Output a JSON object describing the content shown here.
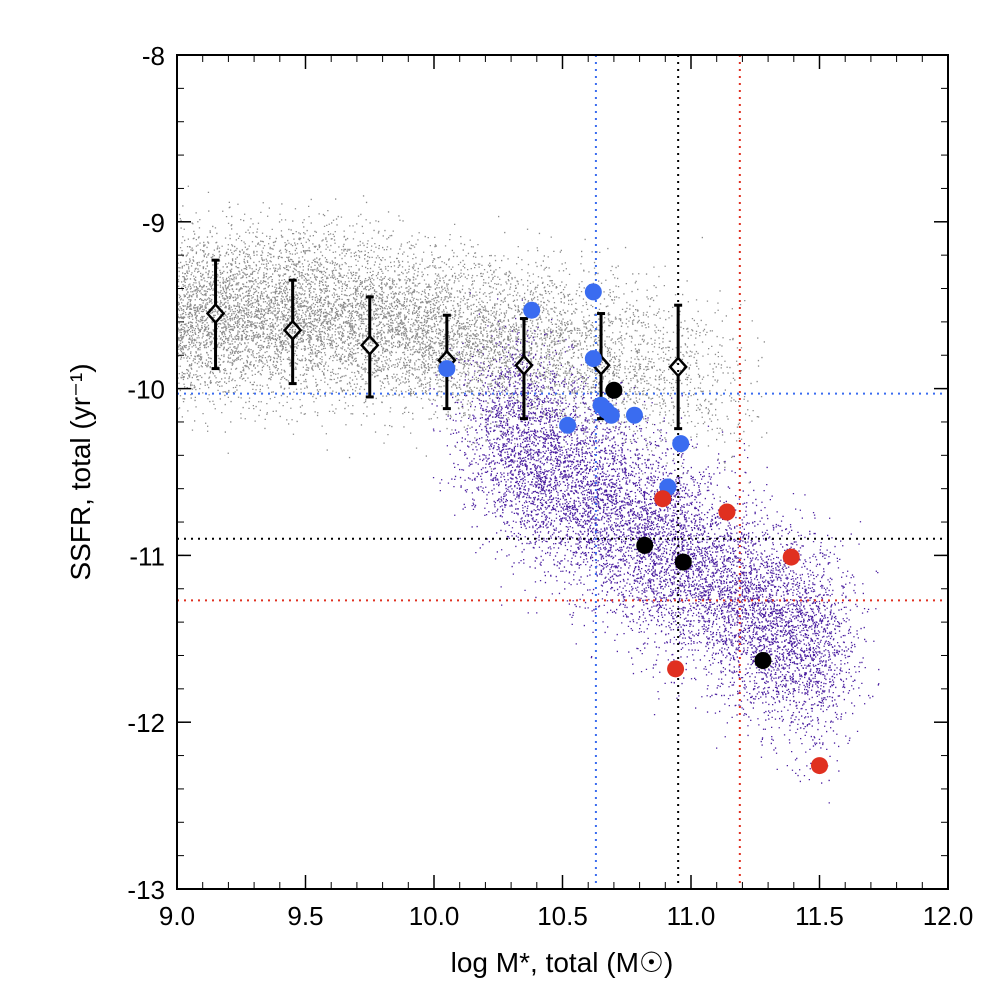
{
  "chart_data": {
    "type": "scatter",
    "title": "",
    "xlabel": "log M*, total (M☉)",
    "ylabel": "SSFR, total (yr⁻¹)",
    "xlim": [
      9.0,
      12.0
    ],
    "ylim": [
      -13.0,
      -8.0
    ],
    "x_ticks": [
      9.0,
      9.5,
      10.0,
      10.5,
      11.0,
      11.5,
      12.0
    ],
    "x_tick_labels": [
      "9.0",
      "9.5",
      "10.0",
      "10.5",
      "11.0",
      "11.5",
      "12.0"
    ],
    "y_ticks": [
      -8,
      -9,
      -10,
      -11,
      -12,
      -13
    ],
    "y_tick_labels": [
      "-8",
      "-9",
      "-10",
      "-11",
      "-12",
      "-13"
    ],
    "grid": false,
    "reference_lines": [
      {
        "orientation": "vertical",
        "value": 10.63,
        "color": "#3a6cf0",
        "style": "dotted"
      },
      {
        "orientation": "vertical",
        "value": 10.95,
        "color": "#000000",
        "style": "dotted"
      },
      {
        "orientation": "vertical",
        "value": 11.19,
        "color": "#e03020",
        "style": "dotted"
      },
      {
        "orientation": "horizontal",
        "value": -10.03,
        "color": "#3a6cf0",
        "style": "dotted"
      },
      {
        "orientation": "horizontal",
        "value": -10.9,
        "color": "#000000",
        "style": "dotted"
      },
      {
        "orientation": "horizontal",
        "value": -11.27,
        "color": "#e03020",
        "style": "dotted"
      }
    ],
    "binned_medians": {
      "name": "binned median with error bars",
      "color": "#000000",
      "marker": "open-diamond",
      "points": [
        {
          "x": 9.15,
          "y": -9.55,
          "ylow": -9.88,
          "yhigh": -9.23
        },
        {
          "x": 9.45,
          "y": -9.65,
          "ylow": -9.97,
          "yhigh": -9.35
        },
        {
          "x": 9.75,
          "y": -9.74,
          "ylow": -10.05,
          "yhigh": -9.45
        },
        {
          "x": 10.05,
          "y": -9.83,
          "ylow": -10.12,
          "yhigh": -9.56
        },
        {
          "x": 10.35,
          "y": -9.86,
          "ylow": -10.18,
          "yhigh": -9.58
        },
        {
          "x": 10.65,
          "y": -9.86,
          "ylow": -10.18,
          "yhigh": -9.55
        },
        {
          "x": 10.95,
          "y": -9.87,
          "ylow": -10.24,
          "yhigh": -9.5
        }
      ]
    },
    "series": [
      {
        "name": "blue galaxies",
        "color": "#3a6cf0",
        "x": [
          10.62,
          10.38,
          10.62,
          10.05,
          10.65,
          10.67,
          10.69,
          10.78,
          10.52,
          10.96,
          10.91
        ],
        "y": [
          -9.42,
          -9.53,
          -9.82,
          -9.88,
          -10.1,
          -10.13,
          -10.16,
          -10.16,
          -10.22,
          -10.33,
          -10.59
        ]
      },
      {
        "name": "black galaxies",
        "color": "#000000",
        "x": [
          10.7,
          10.82,
          10.97,
          11.28
        ],
        "y": [
          -10.01,
          -10.94,
          -11.04,
          -11.63
        ]
      },
      {
        "name": "red galaxies",
        "color": "#e03020",
        "x": [
          10.89,
          11.14,
          11.39,
          10.94,
          11.5
        ],
        "y": [
          -10.66,
          -10.74,
          -11.01,
          -11.68,
          -12.26
        ]
      }
    ],
    "background_distributions": [
      {
        "name": "gray point cloud",
        "color": "#8c8c8c",
        "x_range": [
          9.0,
          11.3
        ],
        "y_center_at_low_mass": -9.55,
        "y_spread": 0.35
      },
      {
        "name": "purple point cloud",
        "color": "#4b1fa0",
        "x_range": [
          10.1,
          11.6
        ],
        "y_range": [
          -12.5,
          -9.9
        ]
      }
    ]
  }
}
